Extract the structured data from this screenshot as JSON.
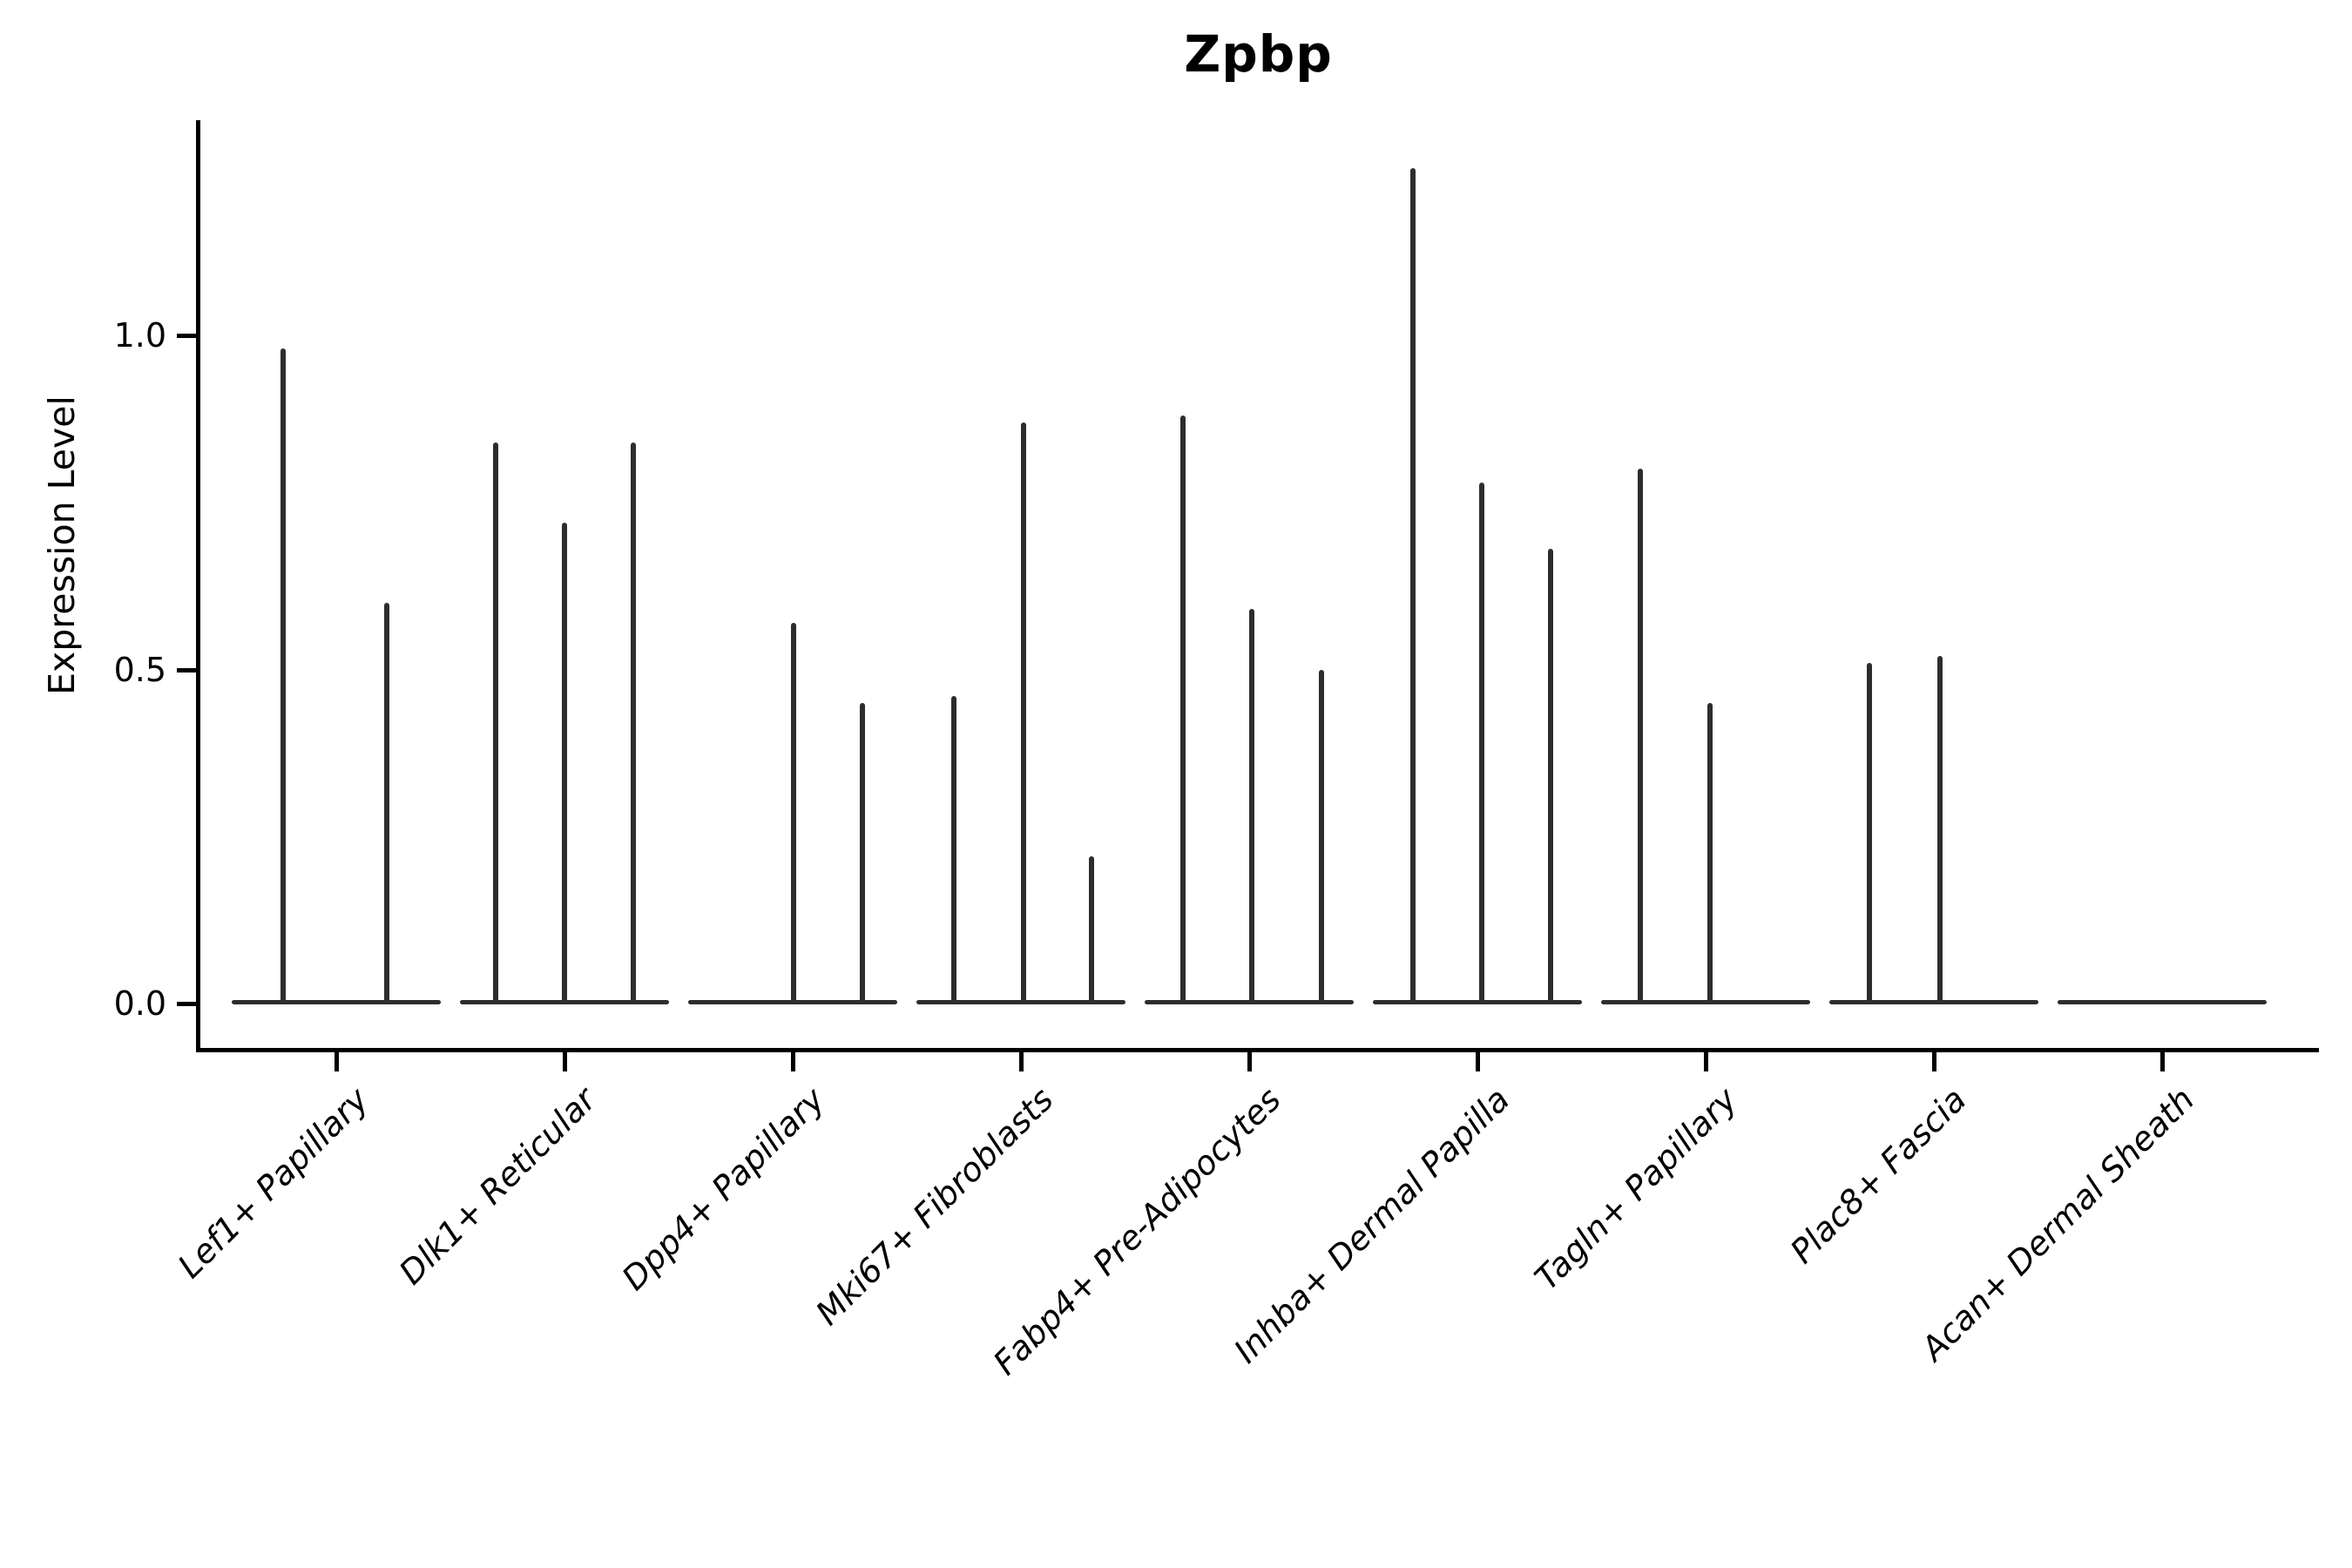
{
  "title": "Zpbp",
  "ylabel": "Expression Level",
  "chart_data": {
    "type": "violin",
    "title": "Zpbp",
    "xlabel": "",
    "ylabel": "Expression Level",
    "ylim": [
      -0.07,
      1.32
    ],
    "yticks": [
      0.0,
      0.5,
      1.0
    ],
    "ytick_labels": [
      "0.0",
      "0.5",
      "1.0"
    ],
    "grid": false,
    "legend": null,
    "violin_color": "#2d2d2d",
    "axis_color": "#000000",
    "categories": [
      "Lef1+ Papillary",
      "Dlk1+ Reticular",
      "Dpp4+ Papillary",
      "Mki67+ Fibroblasts",
      "Fabp4+ Pre-Adipocytes",
      "Inhba+ Dermal Papilla",
      "Tagln+ Papillary",
      "Plac8+ Fascia",
      "Acan+ Dermal Sheath"
    ],
    "groups": [
      {
        "category": "Lef1+ Papillary",
        "violins": [
          {
            "dx": -61,
            "max": 0.98
          },
          {
            "dx": 58,
            "max": 0.6
          }
        ]
      },
      {
        "category": "Dlk1+ Reticular",
        "violins": [
          {
            "dx": -79,
            "max": 0.84
          },
          {
            "dx": 0,
            "max": 0.72
          },
          {
            "dx": 79,
            "max": 0.84
          }
        ]
      },
      {
        "category": "Dpp4+ Papillary",
        "violins": [
          {
            "dx": 1,
            "max": 0.57
          },
          {
            "dx": 80,
            "max": 0.45
          }
        ]
      },
      {
        "category": "Mki67+ Fibroblasts",
        "violins": [
          {
            "dx": -77,
            "max": 0.46
          },
          {
            "dx": 3,
            "max": 0.87
          },
          {
            "dx": 81,
            "max": 0.22
          }
        ]
      },
      {
        "category": "Fabp4+ Pre-Adipocytes",
        "violins": [
          {
            "dx": -76,
            "max": 0.88
          },
          {
            "dx": 3,
            "max": 0.59
          },
          {
            "dx": 83,
            "max": 0.5
          }
        ]
      },
      {
        "category": "Inhba+ Dermal Papilla",
        "violins": [
          {
            "dx": -74,
            "max": 1.25
          },
          {
            "dx": 5,
            "max": 0.78
          },
          {
            "dx": 84,
            "max": 0.68
          }
        ]
      },
      {
        "category": "Tagln+ Papillary",
        "violins": [
          {
            "dx": -75,
            "max": 0.8
          },
          {
            "dx": 5,
            "max": 0.45
          }
        ]
      },
      {
        "category": "Plac8+ Fascia",
        "violins": [
          {
            "dx": -74,
            "max": 0.51
          },
          {
            "dx": 7,
            "max": 0.52
          }
        ]
      },
      {
        "category": "Acan+ Dermal Sheath",
        "violins": []
      }
    ]
  }
}
